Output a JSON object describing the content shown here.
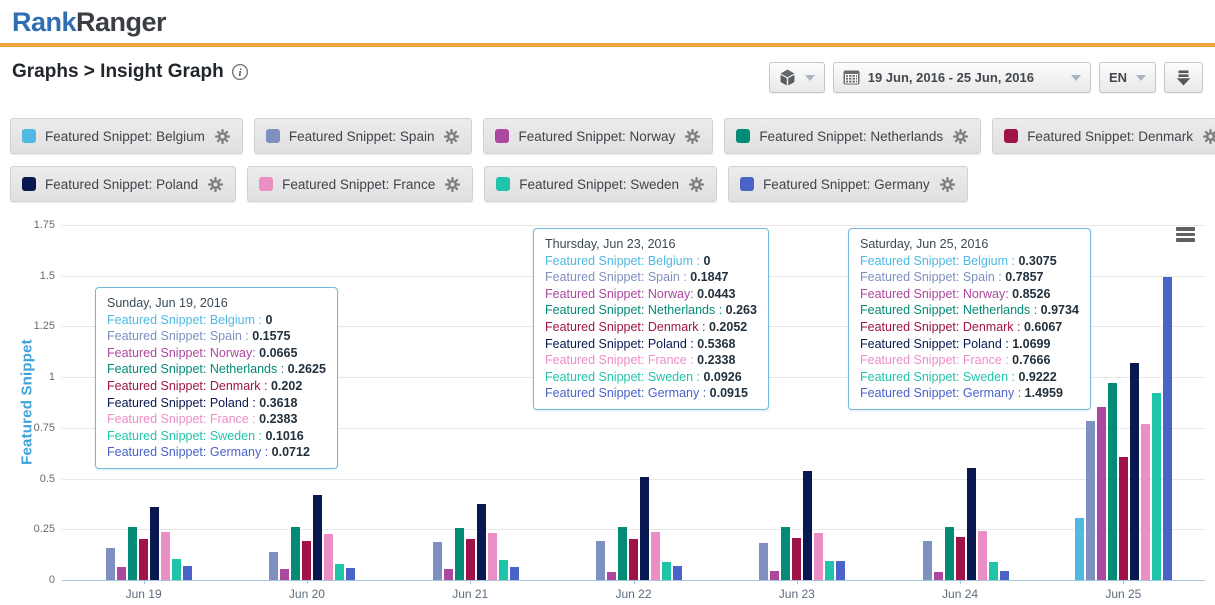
{
  "header": {
    "logo_part1": "Rank",
    "logo_part2": "Ranger"
  },
  "breadcrumb": {
    "text": "Graphs > Insight Graph",
    "info_icon": "info-icon"
  },
  "toolbar": {
    "module_button": {
      "icon": "cube-icon"
    },
    "date_range": "19 Jun, 2016 - 25 Jun, 2016",
    "calendar_icon": "calendar-icon",
    "language": "EN",
    "download_icon": "download-icon"
  },
  "colors": {
    "accent_gold": "#ECA53C",
    "logo_blue": "#2F6DB4",
    "axis_title_blue": "#3EA2DB",
    "tooltip_border": "#74B9DB",
    "grid": "#E8E8E8",
    "axis_line": "#A7C6DA"
  },
  "legend": {
    "rows": [
      [
        "Featured Snippet: Belgium",
        "Featured Snippet: Spain",
        "Featured Snippet: Norway",
        "Featured Snippet: Netherlands",
        "Featured Snippet: Denmark"
      ],
      [
        "Featured Snippet: Poland",
        "Featured Snippet: France",
        "Featured Snippet: Sweden",
        "Featured Snippet: Germany"
      ]
    ],
    "gear_icon": "gear-icon"
  },
  "chart_data": {
    "type": "bar",
    "title": "",
    "xlabel": "",
    "ylabel": "Featured Snippet",
    "ylim": [
      0,
      1.75
    ],
    "yticks": [
      "0",
      "0.25",
      "0.5",
      "0.75",
      "1",
      "1.25",
      "1.5",
      "1.75"
    ],
    "grid": true,
    "legend_position": "top",
    "categories": [
      "Jun 19",
      "Jun 20",
      "Jun 21",
      "Jun 22",
      "Jun 23",
      "Jun 24",
      "Jun 25"
    ],
    "series": [
      {
        "name": "Featured Snippet: Belgium",
        "color": "#4FB9E3",
        "values": [
          0,
          0,
          0,
          0,
          0,
          0,
          0.3075
        ]
      },
      {
        "name": "Featured Snippet: Spain",
        "color": "#7E90BF",
        "values": [
          0.1575,
          0.14,
          0.185,
          0.19,
          0.1847,
          0.19,
          0.7857
        ]
      },
      {
        "name": "Featured Snippet: Norway",
        "color": "#AC489F",
        "values": [
          0.0665,
          0.055,
          0.055,
          0.04,
          0.0443,
          0.04,
          0.8526
        ]
      },
      {
        "name": "Featured Snippet: Netherlands",
        "color": "#038B75",
        "values": [
          0.2625,
          0.26,
          0.255,
          0.26,
          0.263,
          0.26,
          0.9734
        ]
      },
      {
        "name": "Featured Snippet: Denmark",
        "color": "#A01349",
        "values": [
          0.202,
          0.19,
          0.2,
          0.2,
          0.2052,
          0.21,
          0.6067
        ]
      },
      {
        "name": "Featured Snippet: Poland",
        "color": "#091850",
        "values": [
          0.3618,
          0.42,
          0.375,
          0.51,
          0.5368,
          0.55,
          1.0699
        ]
      },
      {
        "name": "Featured Snippet: France",
        "color": "#EC8EC6",
        "values": [
          0.2383,
          0.225,
          0.23,
          0.235,
          0.2338,
          0.24,
          0.7666
        ]
      },
      {
        "name": "Featured Snippet: Sweden",
        "color": "#20C4A9",
        "values": [
          0.1016,
          0.08,
          0.1,
          0.09,
          0.0926,
          0.09,
          0.9222
        ]
      },
      {
        "name": "Featured Snippet: Germany",
        "color": "#4A63C9",
        "values": [
          0.0712,
          0.057,
          0.065,
          0.07,
          0.0915,
          0.045,
          1.4959
        ]
      }
    ]
  },
  "tooltips": [
    {
      "date": "Sunday, Jun 19, 2016",
      "rows": [
        {
          "series": "Featured Snippet: Belgium",
          "sep": " : ",
          "value": "0"
        },
        {
          "series": "Featured Snippet: Spain",
          "sep": " : ",
          "value": "0.1575"
        },
        {
          "series": "Featured Snippet: Norway",
          "sep": ": ",
          "value": "0.0665"
        },
        {
          "series": "Featured Snippet: Netherlands",
          "sep": " : ",
          "value": "0.2625"
        },
        {
          "series": "Featured Snippet: Denmark",
          "sep": " : ",
          "value": "0.202"
        },
        {
          "series": "Featured Snippet: Poland",
          "sep": " : ",
          "value": "0.3618"
        },
        {
          "series": "Featured Snippet: France",
          "sep": " : ",
          "value": "0.2383"
        },
        {
          "series": "Featured Snippet: Sweden",
          "sep": " : ",
          "value": "0.1016"
        },
        {
          "series": "Featured Snippet: Germany",
          "sep": " : ",
          "value": "0.0712"
        }
      ]
    },
    {
      "date": "Thursday, Jun 23, 2016",
      "rows": [
        {
          "series": "Featured Snippet: Belgium",
          "sep": " : ",
          "value": "0"
        },
        {
          "series": "Featured Snippet: Spain",
          "sep": " : ",
          "value": "0.1847"
        },
        {
          "series": "Featured Snippet: Norway",
          "sep": ": ",
          "value": "0.0443"
        },
        {
          "series": "Featured Snippet: Netherlands",
          "sep": " : ",
          "value": "0.263"
        },
        {
          "series": "Featured Snippet: Denmark",
          "sep": " : ",
          "value": "0.2052"
        },
        {
          "series": "Featured Snippet: Poland",
          "sep": " : ",
          "value": "0.5368"
        },
        {
          "series": "Featured Snippet: France",
          "sep": " : ",
          "value": "0.2338"
        },
        {
          "series": "Featured Snippet: Sweden",
          "sep": " : ",
          "value": "0.0926"
        },
        {
          "series": "Featured Snippet: Germany",
          "sep": " : ",
          "value": "0.0915"
        }
      ]
    },
    {
      "date": "Saturday, Jun 25, 2016",
      "rows": [
        {
          "series": "Featured Snippet: Belgium",
          "sep": " : ",
          "value": "0.3075"
        },
        {
          "series": "Featured Snippet: Spain",
          "sep": " : ",
          "value": "0.7857"
        },
        {
          "series": "Featured Snippet: Norway",
          "sep": ": ",
          "value": "0.8526"
        },
        {
          "series": "Featured Snippet: Netherlands",
          "sep": " : ",
          "value": "0.9734"
        },
        {
          "series": "Featured Snippet: Denmark",
          "sep": " : ",
          "value": "0.6067"
        },
        {
          "series": "Featured Snippet: Poland",
          "sep": " : ",
          "value": "1.0699"
        },
        {
          "series": "Featured Snippet: France",
          "sep": " : ",
          "value": "0.7666"
        },
        {
          "series": "Featured Snippet: Sweden",
          "sep": " : ",
          "value": "0.9222"
        },
        {
          "series": "Featured Snippet: Germany",
          "sep": " : ",
          "value": "1.4959"
        }
      ]
    }
  ]
}
